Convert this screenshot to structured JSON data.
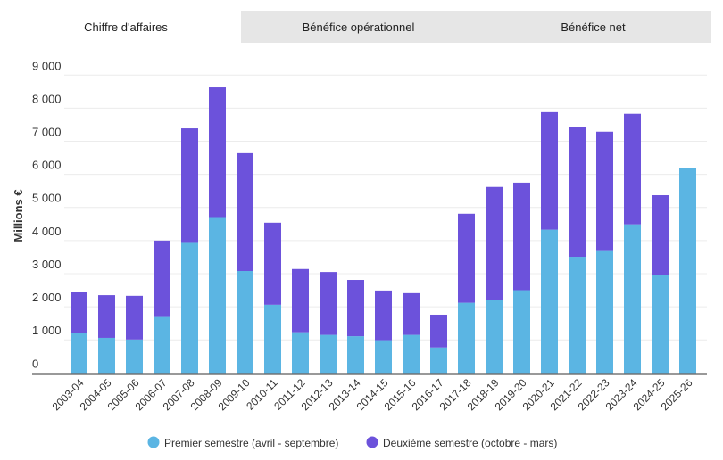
{
  "tabs": [
    {
      "label": "Chiffre d'affaires",
      "active": true
    },
    {
      "label": "Bénéfice opérationnel",
      "active": false
    },
    {
      "label": "Bénéfice net",
      "active": false
    }
  ],
  "chart_data": {
    "type": "bar",
    "stacked": true,
    "title": "",
    "xlabel": "",
    "ylabel": "Millions €",
    "ylim": [
      0,
      9000
    ],
    "yticks": [
      0,
      1000,
      2000,
      3000,
      4000,
      5000,
      6000,
      7000,
      8000,
      9000
    ],
    "ytick_labels": [
      "0",
      "1 000",
      "2 000",
      "3 000",
      "4 000",
      "5 000",
      "6 000",
      "7 000",
      "8 000",
      "9 000"
    ],
    "grid": true,
    "legend_position": "bottom",
    "categories": [
      "2003-04",
      "2004-05",
      "2005-06",
      "2006-07",
      "2007-08",
      "2008-09",
      "2009-10",
      "2010-11",
      "2011-12",
      "2012-13",
      "2013-14",
      "2014-15",
      "2015-16",
      "2016-17",
      "2017-18",
      "2018-19",
      "2019-20",
      "2020-21",
      "2021-22",
      "2022-23",
      "2023-24",
      "2024-25",
      "2025-26"
    ],
    "series": [
      {
        "name": "Premier semestre (avril - septembre)",
        "color": "#5bb5e3",
        "values": [
          1195,
          1060,
          1010,
          1690,
          3930,
          4710,
          3080,
          2060,
          1230,
          1150,
          1110,
          990,
          1150,
          770,
          2120,
          2200,
          2500,
          4330,
          3510,
          3710,
          4490,
          2960,
          6190
        ]
      },
      {
        "name": "Deuxième semestre (octobre - mars)",
        "color": "#6c52db",
        "values": [
          1265,
          1290,
          1320,
          2310,
          3460,
          3920,
          3560,
          2480,
          1910,
          1900,
          1700,
          1500,
          1260,
          990,
          2690,
          3420,
          3250,
          3550,
          3910,
          3580,
          3340,
          2410,
          0
        ]
      }
    ]
  }
}
